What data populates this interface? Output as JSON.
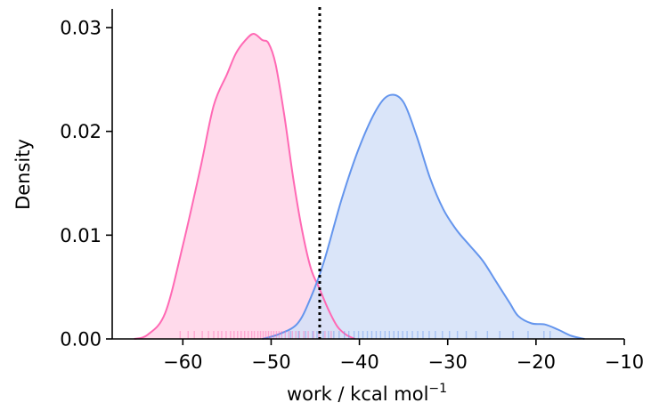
{
  "chart_data": {
    "type": "area",
    "xlabel": "work / kcal mol",
    "xlabel_superscript": "−1",
    "ylabel": "Density",
    "xlim": [
      -68,
      -10
    ],
    "ylim": [
      0,
      0.0318
    ],
    "x_ticks": [
      {
        "value": -60,
        "label": "−60"
      },
      {
        "value": -50,
        "label": "−50"
      },
      {
        "value": -40,
        "label": "−40"
      },
      {
        "value": -30,
        "label": "−30"
      },
      {
        "value": -20,
        "label": "−20"
      },
      {
        "value": -10,
        "label": "−10"
      }
    ],
    "y_ticks": [
      {
        "value": 0.0,
        "label": "0.00"
      },
      {
        "value": 0.01,
        "label": "0.01"
      },
      {
        "value": 0.02,
        "label": "0.02"
      },
      {
        "value": 0.03,
        "label": "0.03"
      }
    ],
    "grid": false,
    "vline": {
      "x": -44.5,
      "style": "dotted",
      "color": "#000000"
    },
    "series": [
      {
        "color": "#ff69b4",
        "fill": "#ffd3e8",
        "x": [
          -65.5,
          -64,
          -62,
          -60,
          -58,
          -56.5,
          -55,
          -54,
          -53,
          -52,
          -51,
          -50.3,
          -49.5,
          -48.5,
          -47.5,
          -46.5,
          -45.5,
          -44.5,
          -43.5,
          -42.5,
          -41.5,
          -40.5
        ],
        "density": [
          0.0,
          0.0004,
          0.0025,
          0.009,
          0.0165,
          0.0225,
          0.0255,
          0.0275,
          0.0287,
          0.0294,
          0.0288,
          0.0285,
          0.0265,
          0.0215,
          0.0155,
          0.0105,
          0.0068,
          0.0048,
          0.0028,
          0.0012,
          0.0004,
          0.0
        ],
        "rug": [
          -60.3,
          -59.4,
          -58.7,
          -57.8,
          -57.1,
          -56.5,
          -56,
          -55.6,
          -55.1,
          -54.6,
          -54.2,
          -53.8,
          -53.4,
          -53,
          -52.6,
          -52.2,
          -51.9,
          -51.5,
          -51.2,
          -50.9,
          -50.6,
          -50.3,
          -50,
          -49.7,
          -49.4,
          -49.1,
          -48.8,
          -48.4,
          -48,
          -47.6,
          -47.2,
          -46.8,
          -46.3,
          -45.8,
          -45.2,
          -44.6,
          -43.9,
          -43.2
        ]
      },
      {
        "color": "#6495ed",
        "fill": "#d4e1f8",
        "x": [
          -51,
          -49,
          -47,
          -45.5,
          -44,
          -42,
          -40,
          -38,
          -36.5,
          -35,
          -33.5,
          -32,
          -30.5,
          -29,
          -27.5,
          -26,
          -24.5,
          -23,
          -22,
          -20.5,
          -19,
          -17.5,
          -16,
          -14.5
        ],
        "density": [
          0.0,
          0.0005,
          0.0015,
          0.004,
          0.0075,
          0.0135,
          0.0185,
          0.0222,
          0.0235,
          0.0228,
          0.0195,
          0.0155,
          0.0125,
          0.0105,
          0.009,
          0.0075,
          0.0055,
          0.0035,
          0.0022,
          0.0015,
          0.0014,
          0.0009,
          0.0003,
          0.0
        ],
        "rug": [
          -47.8,
          -46.9,
          -46.1,
          -45.3,
          -44.8,
          -44.1,
          -43.5,
          -42.9,
          -42.3,
          -41.7,
          -41.2,
          -40.6,
          -40.1,
          -39.6,
          -39.1,
          -38.6,
          -38.1,
          -37.6,
          -37.1,
          -36.6,
          -36.1,
          -35.6,
          -35.1,
          -34.6,
          -34,
          -33.4,
          -32.8,
          -32.1,
          -31.4,
          -30.6,
          -29.8,
          -28.9,
          -27.9,
          -26.8,
          -25.5,
          -24.1,
          -22.6,
          -20.9,
          -19.1,
          -18.4
        ]
      }
    ]
  }
}
